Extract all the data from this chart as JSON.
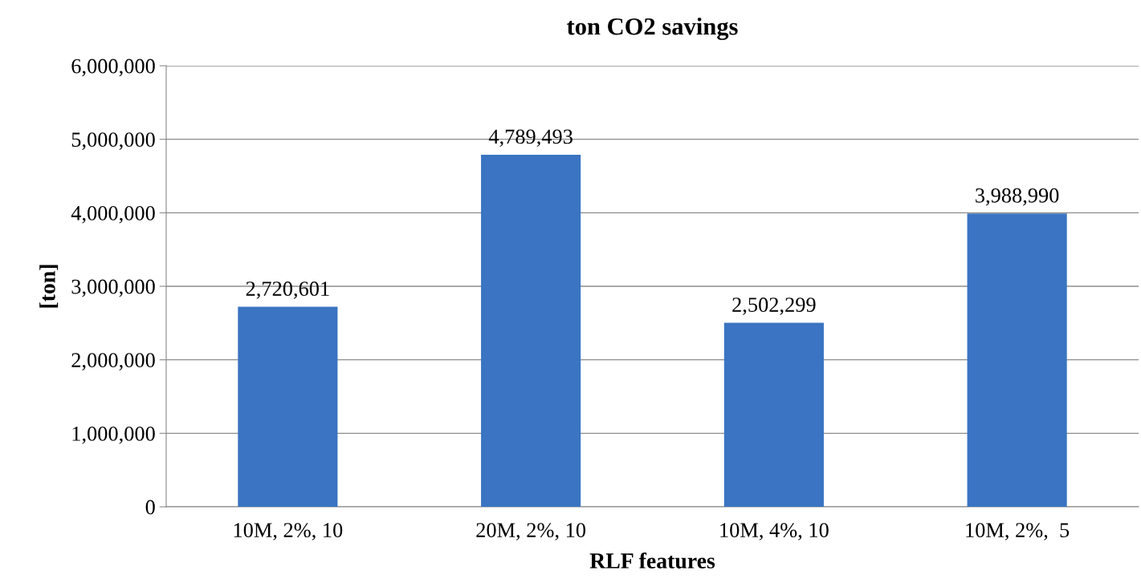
{
  "chart_data": {
    "type": "bar",
    "title": "ton CO2 savings",
    "xlabel": "RLF features",
    "ylabel": "[ton]",
    "categories": [
      "10M, 2%, 10",
      "20M, 2%, 10",
      "10M, 4%, 10",
      "10M, 2%,  5"
    ],
    "values": [
      2720601,
      4789493,
      2502299,
      3988990
    ],
    "color": "#3a74c2",
    "ylim": [
      0,
      6000000
    ],
    "yticks": [
      {
        "value": 0,
        "label": "0"
      },
      {
        "value": 1000000,
        "label": "1,000,000"
      },
      {
        "value": 2000000,
        "label": "2,000,000"
      },
      {
        "value": 3000000,
        "label": "3,000,000"
      },
      {
        "value": 4000000,
        "label": "4,000,000"
      },
      {
        "value": 5000000,
        "label": "5,000,000"
      },
      {
        "value": 6000000,
        "label": "6,000,000"
      }
    ],
    "value_labels": [
      "2,720,601",
      "4,789,493",
      "2,502,299",
      "3,988,990"
    ],
    "grid": "y",
    "legend": false
  }
}
